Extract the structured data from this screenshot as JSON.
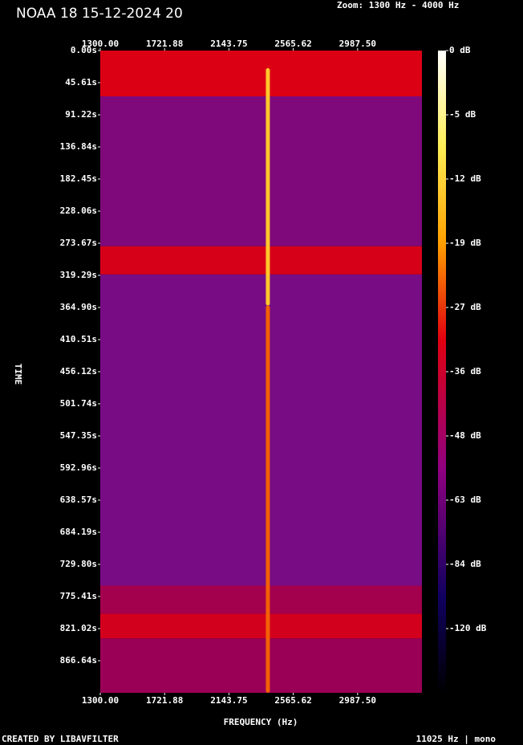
{
  "chart_data": {
    "type": "spectrogram",
    "title": "NOAA 18 15-12-2024 20",
    "zoom": "Zoom: 1300 Hz - 4000 Hz",
    "xlabel": "FREQUENCY (Hz)",
    "ylabel": "TIME",
    "footer_left": "CREATED BY LIBAVFILTER",
    "footer_right": "11025 Hz | mono",
    "xlim": [
      1300,
      3409.375
    ],
    "xticks": [
      {
        "value": 1300,
        "label": "1300.00"
      },
      {
        "value": 1721.88,
        "label": "1721.88"
      },
      {
        "value": 2143.75,
        "label": "2143.75"
      },
      {
        "value": 2565.62,
        "label": "2565.62"
      },
      {
        "value": 2987.5,
        "label": "2987.50"
      }
    ],
    "ylim": [
      0,
      912.25
    ],
    "yticks": [
      {
        "value": 0,
        "label": "0.00s"
      },
      {
        "value": 45.61,
        "label": "45.61s"
      },
      {
        "value": 91.22,
        "label": "91.22s"
      },
      {
        "value": 136.84,
        "label": "136.84s"
      },
      {
        "value": 182.45,
        "label": "182.45s"
      },
      {
        "value": 228.06,
        "label": "228.06s"
      },
      {
        "value": 273.67,
        "label": "273.67s"
      },
      {
        "value": 319.29,
        "label": "319.29s"
      },
      {
        "value": 364.9,
        "label": "364.90s"
      },
      {
        "value": 410.51,
        "label": "410.51s"
      },
      {
        "value": 456.12,
        "label": "456.12s"
      },
      {
        "value": 501.74,
        "label": "501.74s"
      },
      {
        "value": 547.35,
        "label": "547.35s"
      },
      {
        "value": 592.96,
        "label": "592.96s"
      },
      {
        "value": 638.57,
        "label": "638.57s"
      },
      {
        "value": 684.19,
        "label": "684.19s"
      },
      {
        "value": 729.8,
        "label": "729.80s"
      },
      {
        "value": 775.41,
        "label": "775.41s"
      },
      {
        "value": 821.02,
        "label": "821.02s"
      },
      {
        "value": 866.64,
        "label": "866.64s"
      }
    ],
    "colorbar_ticks": [
      {
        "value": 0,
        "label": "0 dB"
      },
      {
        "value": -5,
        "label": "-5 dB"
      },
      {
        "value": -12,
        "label": "-12 dB"
      },
      {
        "value": -19,
        "label": "-19 dB"
      },
      {
        "value": -27,
        "label": "-27 dB"
      },
      {
        "value": -36,
        "label": "-36 dB"
      },
      {
        "value": -48,
        "label": "-48 dB"
      },
      {
        "value": -63,
        "label": "-63 dB"
      },
      {
        "value": -84,
        "label": "-84 dB"
      },
      {
        "value": -120,
        "label": "-120 dB"
      }
    ],
    "bands": [
      {
        "start": 0,
        "end": 65,
        "level": -29
      },
      {
        "start": 65,
        "end": 278,
        "level": -52
      },
      {
        "start": 278,
        "end": 318,
        "level": -30
      },
      {
        "start": 318,
        "end": 760,
        "level": -54
      },
      {
        "start": 760,
        "end": 800,
        "level": -42
      },
      {
        "start": 800,
        "end": 835,
        "level": -31
      },
      {
        "start": 835,
        "end": 912.25,
        "level": -44
      }
    ],
    "tone_segments": [
      {
        "frequency": 2399,
        "start": 25,
        "end": 362,
        "level": -13
      },
      {
        "frequency": 2399,
        "start": 362,
        "end": 912.25,
        "level": -22
      }
    ]
  }
}
